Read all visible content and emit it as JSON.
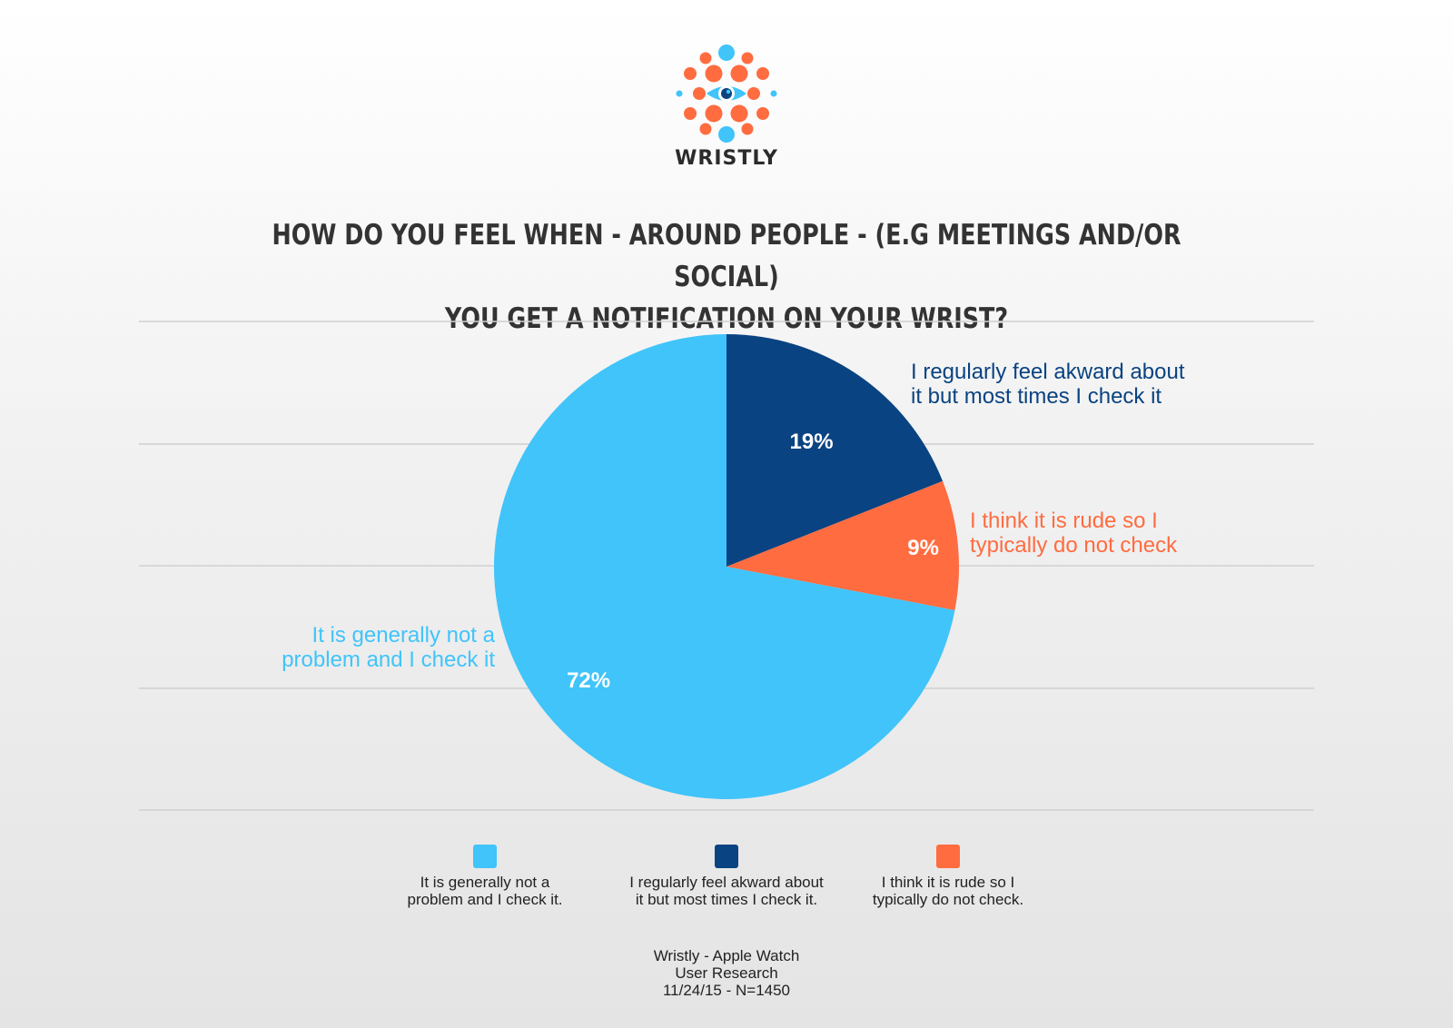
{
  "brand": {
    "name": "WRISTLY"
  },
  "title": {
    "line1": "HOW DO YOU FEEL WHEN - AROUND PEOPLE - (E.G MEETINGS AND/OR SOCIAL)",
    "line2": "YOU GET A NOTIFICATION ON YOUR WRIST?"
  },
  "colors": {
    "light_blue": "#40c4fa",
    "dark_blue": "#0a4381",
    "orange": "#ff6c40"
  },
  "chart_data": {
    "type": "pie",
    "title": "HOW DO YOU FEEL WHEN - AROUND PEOPLE - (E.G MEETINGS AND/OR SOCIAL) YOU GET A NOTIFICATION ON YOUR WRIST?",
    "slices": [
      {
        "value": 19,
        "value_label": "19%",
        "color": "#0a4381",
        "callout": [
          "I regularly feel akward about",
          "it but most times I check it"
        ],
        "legend": [
          "I regularly feel akward about",
          "it but most times I check it."
        ]
      },
      {
        "value": 9,
        "value_label": "9%",
        "color": "#ff6c40",
        "callout": [
          "I think it is rude so I",
          "typically do not check"
        ],
        "legend": [
          "I think it is rude so I",
          "typically do not check."
        ]
      },
      {
        "value": 72,
        "value_label": "72%",
        "color": "#40c4fa",
        "callout": [
          "It is generally not a",
          "problem and I check it"
        ],
        "legend": [
          "It is generally not a",
          "problem and I check it."
        ]
      }
    ],
    "start_angle": "12 o'clock",
    "direction": "clockwise",
    "gridlines": true,
    "legend_position": "bottom"
  },
  "footer": {
    "line1": "Wristly - Apple Watch",
    "line2": "User Research",
    "line3": "11/24/15 - N=1450"
  }
}
